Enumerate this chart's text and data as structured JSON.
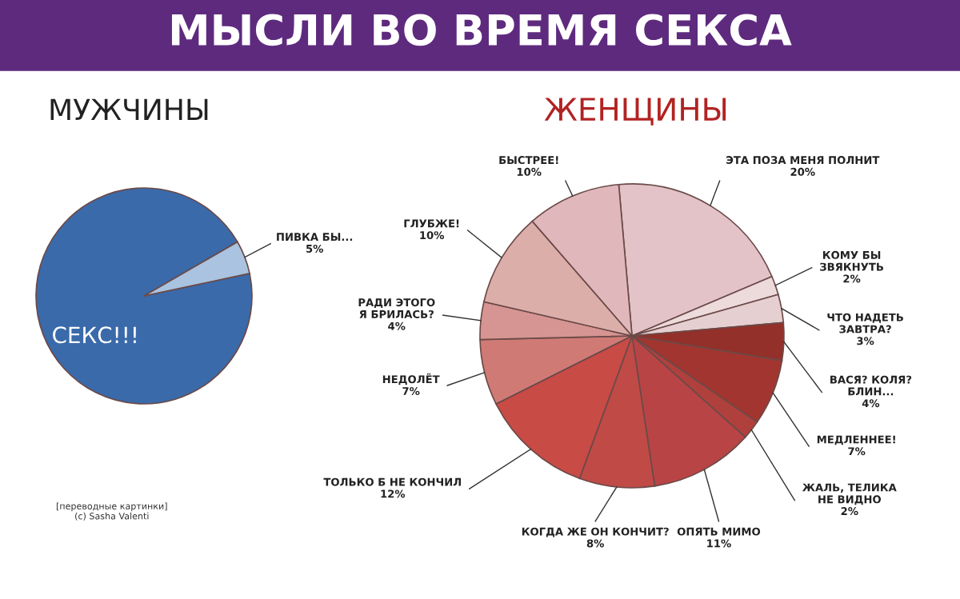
{
  "chart_data": [
    {
      "type": "pie",
      "title": "МЫСЛИ ВО ВРЕМЯ СЕКСА",
      "subtitle": "МУЖЧИНЫ",
      "categories": [
        "СЕКС!!!",
        "ПИВКА БЫ..."
      ],
      "values": [
        95,
        5
      ],
      "value_labels": [
        null,
        "5%"
      ],
      "colors": [
        "#3a6aaa",
        "#a9c3e0"
      ],
      "annotations": [
        "[переводные картинки]\n(c) Sasha Valenti"
      ]
    },
    {
      "type": "pie",
      "title": "ЖЕНЩИНЫ",
      "categories": [
        "ЭТА ПОЗА МЕНЯ ПОЛНИТ",
        "КОМУ БЫ\nЗВЯКНУТЬ",
        "ЧТО НАДЕТЬ\nЗАВТРА?",
        "ВАСЯ? КОЛЯ?\nБЛИН...",
        "МЕДЛЕННЕЕ!",
        "ЖАЛЬ, ТЕЛИКА\nНЕ ВИДНО",
        "ОПЯТЬ МИМО",
        "КОГДА ЖЕ ОН КОНЧИТ?",
        "ТОЛЬКО Б НЕ КОНЧИЛ",
        "НЕДОЛЁТ",
        "РАДИ ЭТОГО\nЯ БРИЛАСЬ?",
        "ГЛУБЖЕ!",
        "БЫСТРЕЕ!"
      ],
      "values": [
        20,
        2,
        3,
        4,
        7,
        2,
        11,
        8,
        12,
        7,
        4,
        10,
        10
      ],
      "value_labels": [
        "20%",
        "2%",
        "3%",
        "4%",
        "7%",
        "2%",
        "11%",
        "8%",
        "12%",
        "7%",
        "4%",
        "10%",
        "10%"
      ],
      "colors": [
        "#e3c3c8",
        "#eddada",
        "#e6cfd0",
        "#93302a",
        "#a2352f",
        "#b0403c",
        "#b84446",
        "#c04a46",
        "#c84b45",
        "#d07a76",
        "#d69592",
        "#dcaeaa",
        "#e0b8bb"
      ]
    }
  ]
}
